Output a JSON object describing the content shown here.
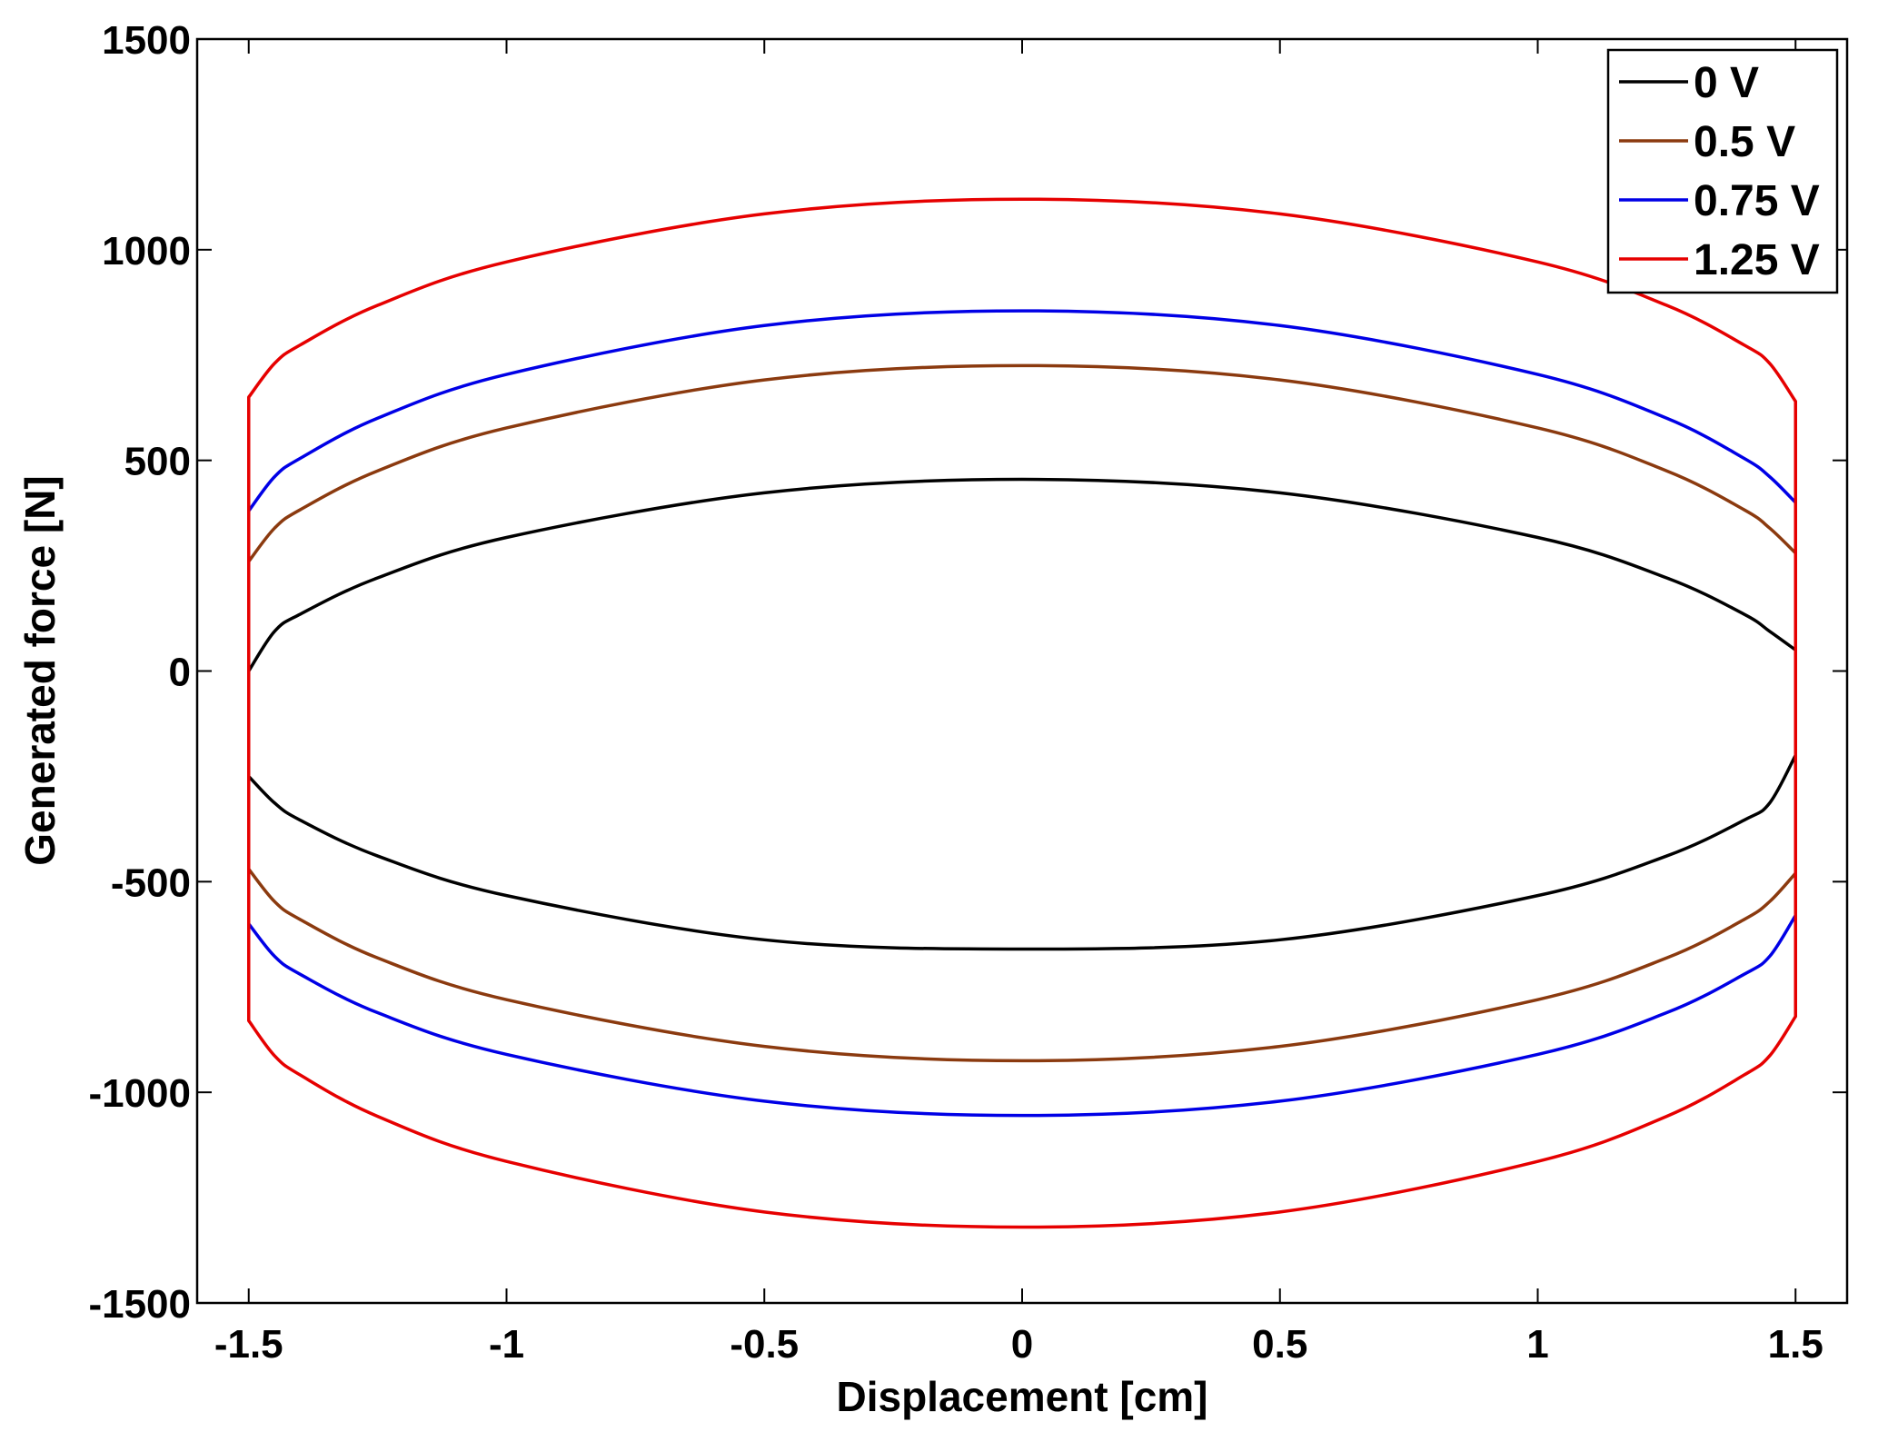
{
  "chart_data": {
    "type": "line",
    "title": "",
    "xlabel": "Displacement [cm]",
    "ylabel": "Generated force [N]",
    "xlim": [
      -1.6,
      1.6
    ],
    "ylim": [
      -1500,
      1500
    ],
    "xticks": [
      -1.5,
      -1,
      -0.5,
      0,
      0.5,
      1,
      1.5
    ],
    "xtick_labels": [
      "-1.5",
      "-1",
      "-0.5",
      "0",
      "0.5",
      "1",
      "1.5"
    ],
    "yticks": [
      1500,
      1000,
      500,
      0,
      -500,
      -1000,
      -1500
    ],
    "ytick_labels": [
      "1500",
      "1000",
      "500",
      "0",
      "-500",
      "-1000",
      "-1500"
    ],
    "grid": false,
    "legend_position": "top-right",
    "x": [
      -1.5,
      -1.45,
      -1.4,
      -1.25,
      -1,
      -0.5,
      0,
      0.5,
      1,
      1.25,
      1.4,
      1.45,
      1.5
    ],
    "series": [
      {
        "name": "0 V",
        "color": "#000000",
        "upper": [
          0,
          94,
          135,
          221,
          317,
          423,
          455,
          423,
          317,
          221,
          135,
          94,
          50
        ],
        "lower": [
          -250,
          -313,
          -354,
          -439,
          -533,
          -638,
          -660,
          -638,
          -533,
          -439,
          -354,
          -313,
          -200
        ]
      },
      {
        "name": "0.5 V",
        "color": "#8b3a0f",
        "upper": [
          260,
          339,
          383,
          475,
          577,
          691,
          725,
          691,
          577,
          475,
          383,
          339,
          280
        ],
        "lower": [
          -470,
          -547,
          -590,
          -681,
          -780,
          -891,
          -925,
          -891,
          -780,
          -681,
          -590,
          -547,
          -480
        ]
      },
      {
        "name": "0.75 V",
        "color": "#0000e6",
        "upper": [
          380,
          461,
          505,
          600,
          704,
          820,
          855,
          820,
          704,
          600,
          505,
          461,
          400
        ],
        "lower": [
          -600,
          -677,
          -720,
          -811,
          -910,
          -1021,
          -1055,
          -1021,
          -910,
          -811,
          -720,
          -677,
          -580
        ]
      },
      {
        "name": "1.25 V",
        "color": "#e60000",
        "upper": [
          650,
          730,
          774,
          868,
          971,
          1085,
          1120,
          1085,
          971,
          868,
          774,
          730,
          640
        ],
        "lower": [
          -830,
          -913,
          -959,
          -1057,
          -1164,
          -1284,
          -1320,
          -1284,
          -1164,
          -1057,
          -959,
          -913,
          -820
        ]
      }
    ]
  }
}
